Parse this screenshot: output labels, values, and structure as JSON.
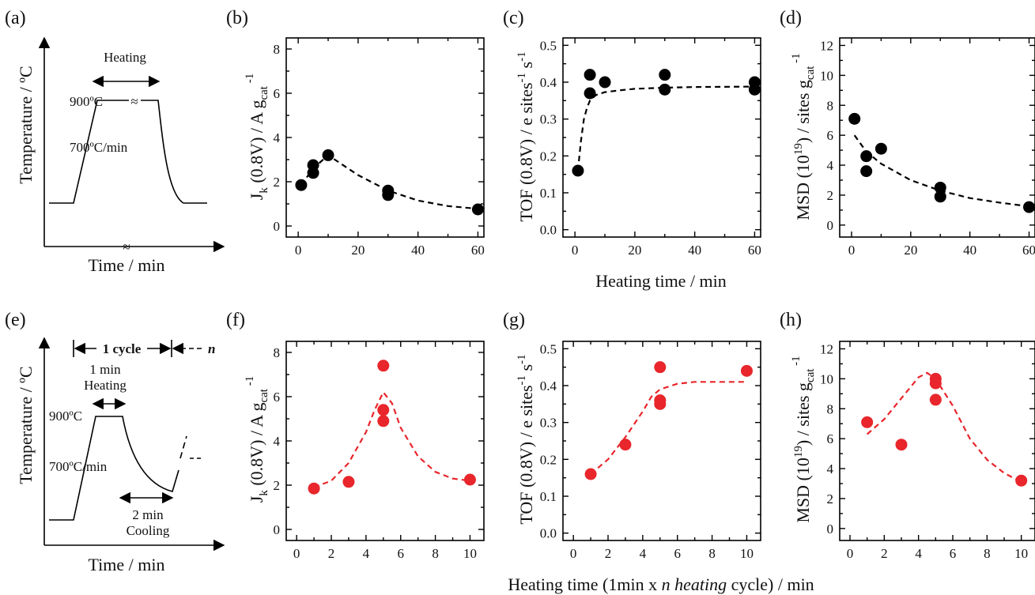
{
  "chart_data": [
    {
      "panel": "(a)",
      "type": "schematic",
      "ylabel": "Temperature / °C",
      "xlabel": "Time / min",
      "annotations": [
        "Heating",
        "900°C",
        "700°C/min"
      ]
    },
    {
      "panel": "(b)",
      "type": "scatter",
      "ylabel": "J_k (0.8V) / A g_cat^-1",
      "xlim": [
        -4,
        62
      ],
      "ylim": [
        -0.5,
        8.5
      ],
      "xticks": [
        0,
        20,
        40,
        60
      ],
      "yticks": [
        0,
        2,
        4,
        6,
        8
      ],
      "series": [
        {
          "color": "#000000",
          "x": [
            1,
            5,
            5,
            10,
            30,
            30,
            60
          ],
          "y": [
            1.85,
            2.4,
            2.75,
            3.2,
            1.6,
            1.4,
            0.75
          ]
        }
      ],
      "fit": {
        "color": "#000000",
        "x": [
          1,
          5,
          10,
          20,
          30,
          40,
          50,
          60
        ],
        "y": [
          1.85,
          2.6,
          3.2,
          2.3,
          1.6,
          1.15,
          0.9,
          0.78
        ]
      }
    },
    {
      "panel": "(c)",
      "type": "scatter",
      "ylabel": "TOF (0.8V) / e sites^-1 s^-1",
      "xlim": [
        -4,
        62
      ],
      "ylim": [
        -0.02,
        0.52
      ],
      "xticks": [
        0,
        20,
        40,
        60
      ],
      "yticks": [
        0.0,
        0.1,
        0.2,
        0.3,
        0.4,
        0.5
      ],
      "series": [
        {
          "color": "#000000",
          "x": [
            1,
            5,
            5,
            10,
            30,
            30,
            60,
            60
          ],
          "y": [
            0.16,
            0.42,
            0.37,
            0.4,
            0.42,
            0.38,
            0.4,
            0.38
          ]
        }
      ],
      "fit": {
        "color": "#000000",
        "x": [
          1,
          2,
          3,
          4,
          5,
          7,
          10,
          15,
          20,
          30,
          40,
          60
        ],
        "y": [
          0.16,
          0.24,
          0.3,
          0.33,
          0.35,
          0.365,
          0.373,
          0.378,
          0.382,
          0.385,
          0.387,
          0.388
        ]
      }
    },
    {
      "panel": "(d)",
      "type": "scatter",
      "ylabel": "MSD (10^19) / sites g_cat^-1",
      "xlim": [
        -4,
        62
      ],
      "ylim": [
        -0.8,
        12.5
      ],
      "xticks": [
        0,
        20,
        40,
        60
      ],
      "yticks": [
        0,
        2,
        4,
        6,
        8,
        10,
        12
      ],
      "series": [
        {
          "color": "#000000",
          "x": [
            1,
            5,
            5,
            10,
            30,
            30,
            60
          ],
          "y": [
            7.1,
            4.6,
            3.6,
            5.1,
            2.5,
            1.9,
            1.2
          ]
        }
      ],
      "fit": {
        "color": "#000000",
        "x": [
          1,
          5,
          10,
          20,
          30,
          40,
          50,
          60
        ],
        "y": [
          6.0,
          4.9,
          4.1,
          3.0,
          2.3,
          1.8,
          1.5,
          1.25
        ]
      }
    },
    {
      "panel": "(e)",
      "type": "schematic",
      "ylabel": "Temperature / °C",
      "xlabel": "Time / min",
      "annotations": [
        "1 cycle",
        "n",
        "1 min",
        "Heating",
        "900°C",
        "700°C/min",
        "2 min",
        "Cooling"
      ]
    },
    {
      "panel": "(f)",
      "type": "scatter",
      "ylabel": "J_k (0.8V) / A g_cat^-1",
      "xlim": [
        -0.6,
        10.8
      ],
      "ylim": [
        -0.5,
        8.5
      ],
      "xticks": [
        0,
        2,
        4,
        6,
        8,
        10
      ],
      "yticks": [
        0,
        2,
        4,
        6,
        8
      ],
      "series": [
        {
          "color": "#e8262b",
          "x": [
            1,
            3,
            5,
            5,
            5,
            10
          ],
          "y": [
            1.85,
            2.15,
            7.4,
            5.4,
            4.9,
            2.25
          ]
        }
      ],
      "fit": {
        "color": "#e8262b",
        "x": [
          1,
          2,
          3,
          4,
          4.5,
          5,
          5.5,
          6,
          7,
          8,
          9,
          10
        ],
        "y": [
          1.9,
          2.2,
          3.0,
          4.4,
          5.4,
          6.2,
          5.7,
          4.6,
          3.3,
          2.6,
          2.3,
          2.2
        ]
      }
    },
    {
      "panel": "(g)",
      "type": "scatter",
      "ylabel": "TOF (0.8V) / e sites^-1 s^-1",
      "xlim": [
        -0.6,
        10.8
      ],
      "ylim": [
        -0.02,
        0.52
      ],
      "xticks": [
        0,
        2,
        4,
        6,
        8,
        10
      ],
      "yticks": [
        0.0,
        0.1,
        0.2,
        0.3,
        0.4,
        0.5
      ],
      "series": [
        {
          "color": "#e8262b",
          "x": [
            1,
            3,
            5,
            5,
            5,
            10
          ],
          "y": [
            0.16,
            0.24,
            0.45,
            0.36,
            0.35,
            0.44
          ]
        }
      ],
      "fit": {
        "color": "#e8262b",
        "x": [
          1,
          2,
          3,
          4,
          4.5,
          5,
          6,
          7,
          8,
          9,
          10
        ],
        "y": [
          0.16,
          0.2,
          0.26,
          0.33,
          0.37,
          0.39,
          0.405,
          0.41,
          0.41,
          0.41,
          0.41
        ]
      }
    },
    {
      "panel": "(h)",
      "type": "scatter",
      "ylabel": "MSD (10^19) / sites g_cat^-1",
      "xlim": [
        -0.6,
        10.8
      ],
      "ylim": [
        -0.8,
        12.5
      ],
      "xticks": [
        0,
        2,
        4,
        6,
        8,
        10
      ],
      "yticks": [
        0,
        2,
        4,
        6,
        8,
        10,
        12
      ],
      "series": [
        {
          "color": "#e8262b",
          "x": [
            1,
            3,
            5,
            5,
            5,
            10
          ],
          "y": [
            7.1,
            5.6,
            10.0,
            9.7,
            8.6,
            3.2
          ]
        }
      ],
      "fit": {
        "color": "#e8262b",
        "x": [
          1,
          2,
          3,
          4,
          4.5,
          5,
          6,
          7,
          8,
          9,
          10
        ],
        "y": [
          6.3,
          7.3,
          8.7,
          10.1,
          10.4,
          10.0,
          8.2,
          6.0,
          4.6,
          3.7,
          3.1
        ]
      }
    }
  ],
  "shared_xlabel_top": "Heating time / min",
  "shared_xlabel_bottom": "Heating time (1min x n heating cycle) / min"
}
